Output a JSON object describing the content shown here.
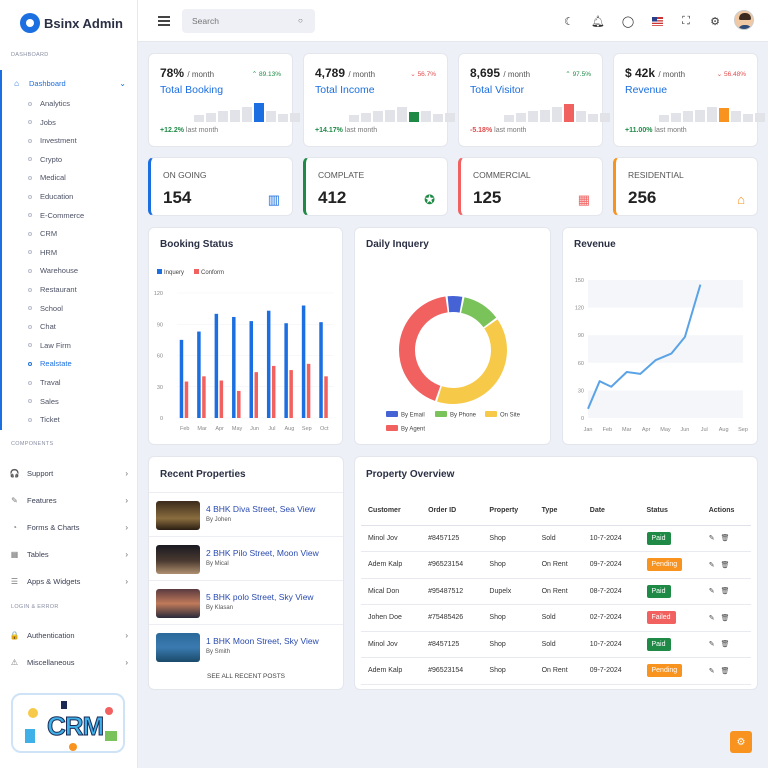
{
  "brand": {
    "name": "Bsinx Admin"
  },
  "search": {
    "placeholder": "Search"
  },
  "sidebar": {
    "sections": {
      "dashboard": "DASHBOARD",
      "components": "COMPONENTS",
      "login": "LOGIN & ERROR"
    },
    "dashboard_label": "Dashboard",
    "sub_items": [
      "Analytics",
      "Jobs",
      "Investment",
      "Crypto",
      "Medical",
      "Education",
      "E-Commerce",
      "CRM",
      "HRM",
      "Warehouse",
      "Restaurant",
      "School",
      "Chat",
      "Law Firm",
      "Realstate",
      "Traval",
      "Sales",
      "Ticket"
    ],
    "active_item": "Realstate",
    "components": [
      "Support",
      "Features",
      "Forms & Charts",
      "Tables",
      "Apps & Widgets"
    ],
    "login": [
      "Authentication",
      "Miscellaneous"
    ],
    "promo_text": "CRM"
  },
  "stats": [
    {
      "value": "78%",
      "unit": "/ month",
      "change": "89.13%",
      "dir": "up",
      "title": "Total Booking",
      "foot_change": "+12.2%",
      "foot_text": "last month",
      "accent": "#1c6fe0",
      "bars": [
        0.35,
        0.45,
        0.55,
        0.6,
        0.75,
        0.95,
        0.55,
        0.4,
        0.45
      ],
      "hi": 5
    },
    {
      "value": "4,789",
      "unit": "/ month",
      "change": "56.7%",
      "dir": "down",
      "title": "Total Income",
      "foot_change": "+14.17%",
      "foot_text": "last month",
      "accent": "#1e8a45",
      "bars": [
        0.35,
        0.45,
        0.55,
        0.6,
        0.75,
        0.5,
        0.55,
        0.4,
        0.45
      ],
      "hi": 5
    },
    {
      "value": "8,695",
      "unit": "/ month",
      "change": "97.5%",
      "dir": "up",
      "title": "Total Visitor",
      "foot_change": "-5.18%",
      "foot_text": "last month",
      "accent": "#f06160",
      "bars": [
        0.35,
        0.45,
        0.55,
        0.6,
        0.75,
        0.9,
        0.55,
        0.4,
        0.45
      ],
      "hi": 5
    },
    {
      "value": "$ 42k",
      "unit": "/ month",
      "change": "56.48%",
      "dir": "down",
      "title": "Revenue",
      "foot_change": "+11.00%",
      "foot_text": "last month",
      "accent": "#f7931e",
      "bars": [
        0.35,
        0.45,
        0.55,
        0.6,
        0.75,
        0.7,
        0.55,
        0.4,
        0.45
      ],
      "hi": 5
    }
  ],
  "kpis": [
    {
      "label": "ON GOING",
      "value": "154",
      "color": "#1c6fe0",
      "icon": "building-icon"
    },
    {
      "label": "COMPLATE",
      "value": "412",
      "color": "#1e8a45",
      "icon": "award-icon"
    },
    {
      "label": "COMMERCIAL",
      "value": "125",
      "color": "#f06160",
      "icon": "office-icon"
    },
    {
      "label": "RESIDENTIAL",
      "value": "256",
      "color": "#f7931e",
      "icon": "home-icon"
    }
  ],
  "charts": {
    "booking_title": "Booking Status",
    "daily_title": "Daily Inquery",
    "revenue_title": "Revenue"
  },
  "chart_data": [
    {
      "type": "bar",
      "title": "Booking Status",
      "categories": [
        "Feb",
        "Mar",
        "Apr",
        "May",
        "Jun",
        "Jul",
        "Aug",
        "Sep",
        "Oct"
      ],
      "series": [
        {
          "name": "Inquery",
          "color": "#1c6fe0",
          "values": [
            75,
            83,
            100,
            97,
            93,
            103,
            91,
            108,
            92
          ]
        },
        {
          "name": "Conform",
          "color": "#f06160",
          "values": [
            35,
            40,
            36,
            26,
            44,
            50,
            46,
            52,
            40
          ]
        }
      ],
      "ylim": [
        0,
        120
      ],
      "yticks": [
        0,
        30,
        60,
        90,
        120
      ],
      "legend": "top-left"
    },
    {
      "type": "pie",
      "title": "Daily Inquery",
      "donut": true,
      "slices": [
        {
          "name": "By Email",
          "value": 5,
          "color": "#4663d6"
        },
        {
          "name": "By Phone",
          "value": 12,
          "color": "#7ac35a"
        },
        {
          "name": "On Site",
          "value": 40,
          "color": "#f7c948"
        },
        {
          "name": "By Agent",
          "value": 43,
          "color": "#f06160"
        }
      ],
      "legend": "bottom"
    },
    {
      "type": "line",
      "title": "Revenue",
      "categories": [
        "Jan",
        "Feb",
        "Mar",
        "Apr",
        "May",
        "Jun",
        "Jul",
        "Aug",
        "Sep"
      ],
      "series": [
        {
          "color": "#5aa3e6",
          "values": [
            [
              0,
              10
            ],
            [
              0.6,
              40
            ],
            [
              1.2,
              34
            ],
            [
              2,
              50
            ],
            [
              2.7,
              48
            ],
            [
              3.5,
              63
            ],
            [
              4.3,
              70
            ],
            [
              5,
              88
            ],
            [
              5.8,
              145
            ]
          ]
        }
      ],
      "ylim": [
        0,
        150
      ],
      "yticks": [
        0,
        30,
        60,
        90,
        120,
        150
      ]
    }
  ],
  "properties": {
    "title": "Recent Properties",
    "see_all": "SEE ALL RECENT POSTS",
    "items": [
      {
        "title": "4 BHK Diva Street, Sea View",
        "agent": "By Johen"
      },
      {
        "title": "2 BHK Pilo Street, Moon View",
        "agent": "By Mical"
      },
      {
        "title": "5 BHK polo Street, Sky View",
        "agent": "By Klasan"
      },
      {
        "title": "1 BHK Moon Street, Sky View",
        "agent": "By Smith"
      }
    ]
  },
  "overview": {
    "title": "Property Overview",
    "headers": [
      "Customer",
      "Order ID",
      "Property",
      "Type",
      "Date",
      "Status",
      "Actions"
    ],
    "rows": [
      [
        "Minol Jov",
        "#8457125",
        "Shop",
        "Sold",
        "10-7-2024",
        "Paid"
      ],
      [
        "Adem Kalp",
        "#96523154",
        "Shop",
        "On Rent",
        "09-7-2024",
        "Pending"
      ],
      [
        "Mical Don",
        "#95487512",
        "Dupelx",
        "On Rent",
        "08-7-2024",
        "Paid"
      ],
      [
        "Johen Doe",
        "#75485426",
        "Shop",
        "Sold",
        "02-7-2024",
        "Failed"
      ],
      [
        "Minol Jov",
        "#8457125",
        "Shop",
        "Sold",
        "10-7-2024",
        "Paid"
      ],
      [
        "Adem Kalp",
        "#96523154",
        "Shop",
        "On Rent",
        "09-7-2024",
        "Pending"
      ]
    ]
  }
}
